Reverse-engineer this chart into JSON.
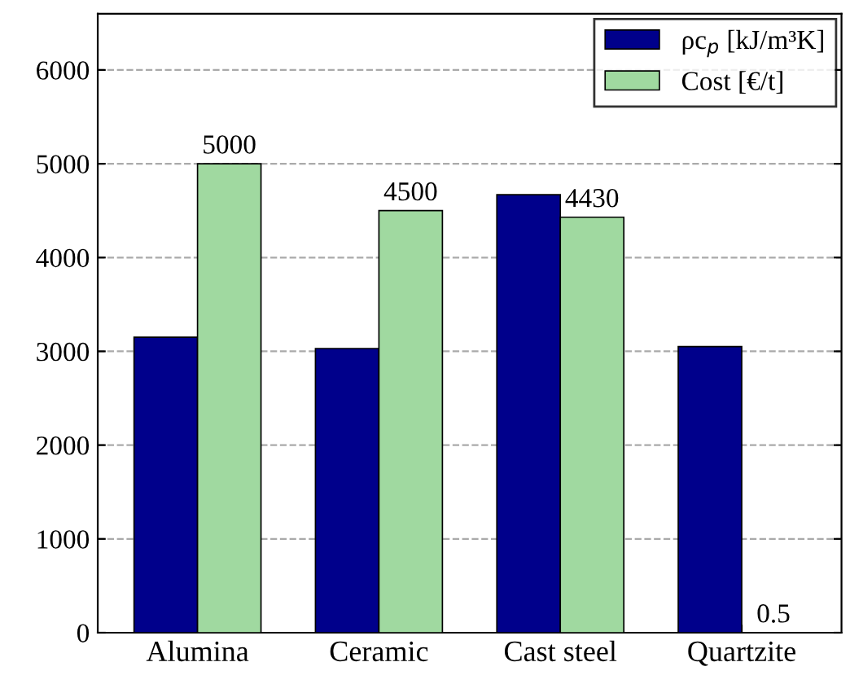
{
  "chart_data": {
    "type": "bar",
    "categories": [
      "Alumina",
      "Ceramic",
      "Cast steel",
      "Quartzite"
    ],
    "series": [
      {
        "name": "ρc$_{p}$ [kJ/m³K]",
        "color": "#00008b",
        "values": [
          3150,
          3030,
          4670,
          3050
        ]
      },
      {
        "name": "Cost [€/t]",
        "color": "#a0d9a0",
        "values": [
          5000,
          4500,
          4430,
          0.5
        ],
        "value_labels": [
          "5000",
          "4500",
          "4430",
          "0.5"
        ]
      }
    ],
    "ylim": [
      0,
      6600
    ],
    "yticks": [
      0,
      1000,
      2000,
      3000,
      4000,
      5000,
      6000
    ],
    "grid": "y",
    "legend": "top right"
  }
}
